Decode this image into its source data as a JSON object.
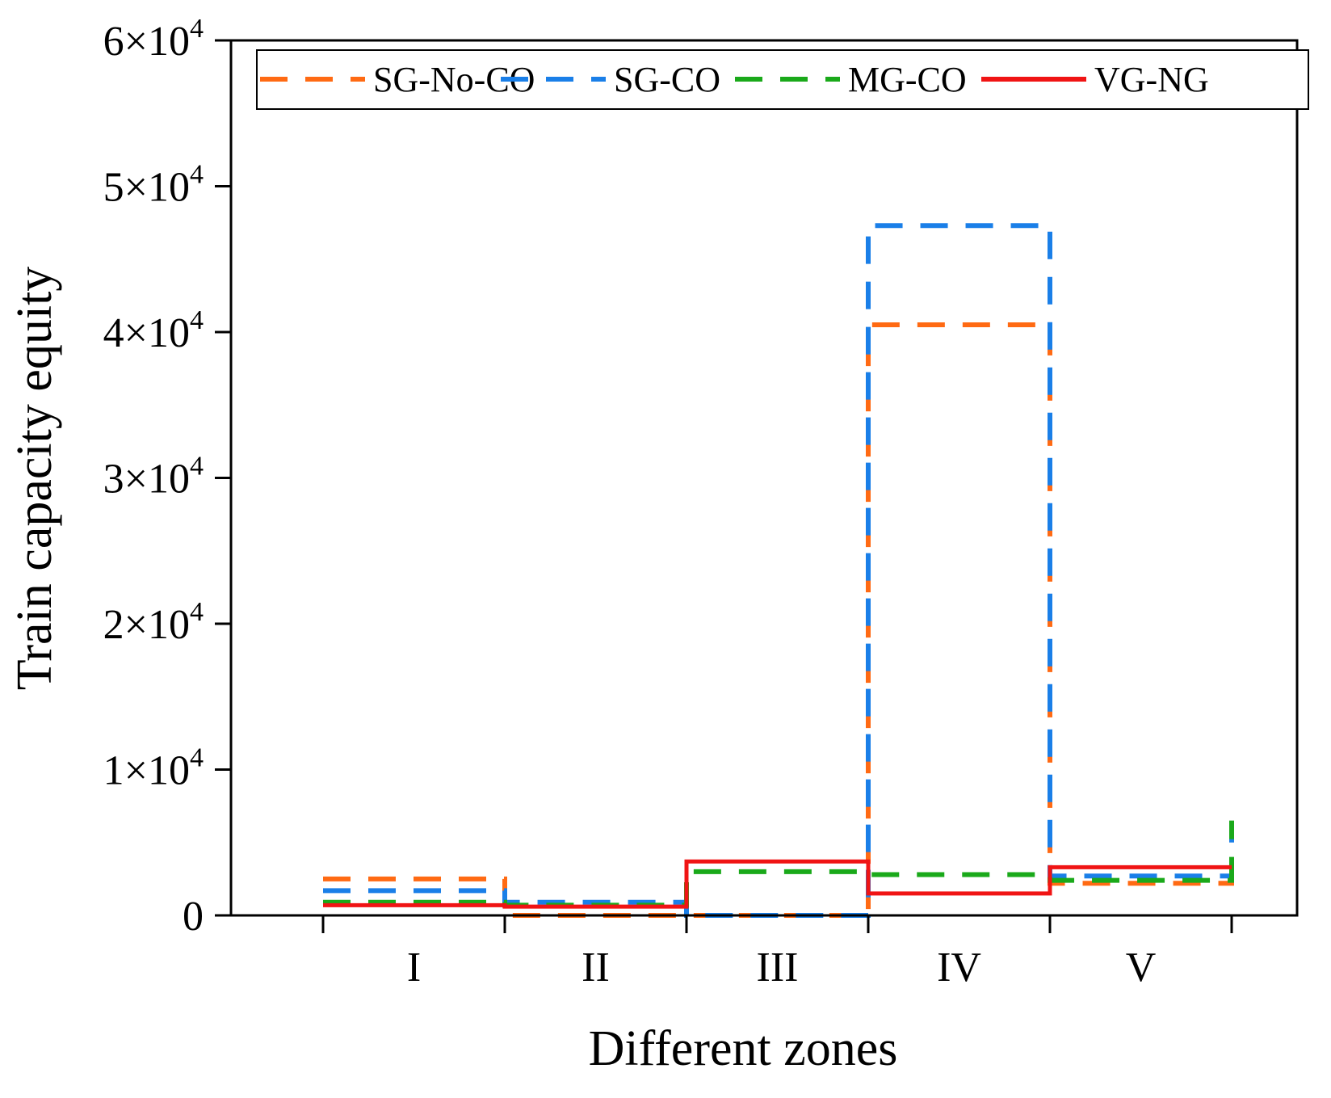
{
  "chart_data": {
    "type": "line",
    "step": true,
    "title": "",
    "xlabel": "Different zones",
    "ylabel": "Train capacity equity",
    "categories": [
      "I",
      "II",
      "III",
      "IV",
      "V"
    ],
    "ylim": [
      0,
      60000
    ],
    "yticks": [
      {
        "value": 0,
        "mantissa": "0",
        "exp": ""
      },
      {
        "value": 10000,
        "mantissa": "1×10",
        "exp": "4"
      },
      {
        "value": 20000,
        "mantissa": "2×10",
        "exp": "4"
      },
      {
        "value": 30000,
        "mantissa": "3×10",
        "exp": "4"
      },
      {
        "value": 40000,
        "mantissa": "4×10",
        "exp": "4"
      },
      {
        "value": 50000,
        "mantissa": "5×10",
        "exp": "4"
      },
      {
        "value": 60000,
        "mantissa": "6×10",
        "exp": "4"
      }
    ],
    "legend_position": "top",
    "series": [
      {
        "name": "SG-No-CO",
        "color": "#ff6a13",
        "dashed": true,
        "values": [
          2500,
          0,
          0,
          40500,
          2200
        ],
        "end_value": 4000
      },
      {
        "name": "SG-CO",
        "color": "#1a7fe8",
        "dashed": true,
        "values": [
          1700,
          900,
          0,
          47300,
          2700
        ],
        "end_value": 5500
      },
      {
        "name": "MG-CO",
        "color": "#1aa91a",
        "dashed": true,
        "values": [
          900,
          700,
          3000,
          2800,
          2400
        ],
        "end_value": 6500
      },
      {
        "name": "VG-NG",
        "color": "#f01414",
        "dashed": false,
        "values": [
          700,
          600,
          3700,
          1500,
          3300
        ],
        "end_value": 3300
      }
    ]
  }
}
